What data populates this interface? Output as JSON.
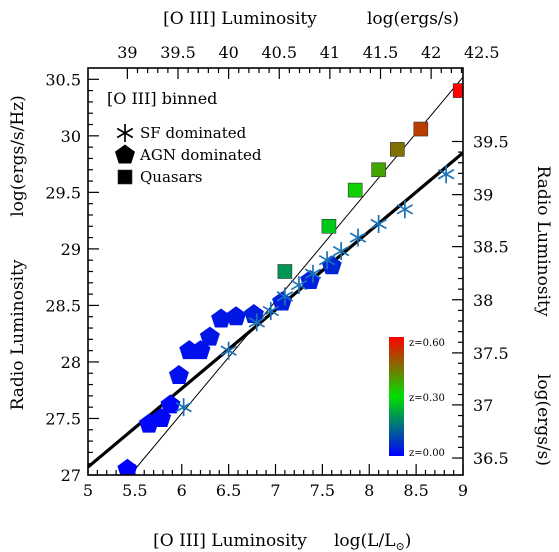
{
  "chart_data": {
    "type": "scatter",
    "panel_label": "[O III] binned",
    "xlabel": "[O III] Luminosity",
    "xlabel_units": "log(L/L",
    "xlabel_units_sub": "⊙",
    "xlabel_units_close": ")",
    "xlim": [
      5,
      9
    ],
    "xticks": [
      "5",
      "5.5",
      "6",
      "6.5",
      "7",
      "7.5",
      "8",
      "8.5",
      "9"
    ],
    "ylabel": "Radio Luminosity",
    "ylabel_units": "log(ergs/s/Hz)",
    "ylim": [
      27,
      30.6
    ],
    "yticks": [
      "27",
      "27.5",
      "28",
      "28.5",
      "29",
      "29.5",
      "30",
      "30.5"
    ],
    "top_axis": {
      "label": "[O III] Luminosity",
      "units": "log(ergs/s)",
      "ticks": [
        {
          "label": "39",
          "value": 39.0,
          "x": 5.42
        },
        {
          "label": "39.5",
          "value": 39.5,
          "x": 5.96
        },
        {
          "label": "40",
          "value": 40.0,
          "x": 6.5
        },
        {
          "label": "40.5",
          "value": 40.5,
          "x": 7.04
        },
        {
          "label": "41",
          "value": 41.0,
          "x": 7.58
        },
        {
          "label": "41.5",
          "value": 41.5,
          "x": 8.12
        },
        {
          "label": "42",
          "value": 42.0,
          "x": 8.66
        },
        {
          "label": "42.5",
          "value": 42.5,
          "x": 9.2
        }
      ]
    },
    "right_axis": {
      "label": "Radio Luminosity",
      "units": "log(ergs/s)",
      "ticks": [
        {
          "label": "36.5",
          "value": 36.5,
          "y": 27.15
        },
        {
          "label": "37",
          "value": 37.0,
          "y": 27.62
        },
        {
          "label": "37.5",
          "value": 37.5,
          "y": 28.08
        },
        {
          "label": "38",
          "value": 38.0,
          "y": 28.55
        },
        {
          "label": "38.5",
          "value": 38.5,
          "y": 29.02
        },
        {
          "label": "39",
          "value": 39.0,
          "y": 29.48
        },
        {
          "label": "39.5",
          "value": 39.5,
          "y": 29.95
        }
      ]
    },
    "legend": [
      {
        "label": "SF dominated",
        "marker": "asterisk"
      },
      {
        "label": "AGN dominated",
        "marker": "pentagon"
      },
      {
        "label": "Quasars",
        "marker": "square"
      }
    ],
    "legend_position": "top-left",
    "colorbar": {
      "position": "bottom-right",
      "labels": [
        "z=0.60",
        "z=0.30",
        "z=0.00"
      ],
      "z_range": [
        0.0,
        0.6
      ]
    },
    "series": [
      {
        "name": "SF dominated",
        "marker": "asterisk",
        "points": [
          {
            "x": 6.02,
            "y": 27.6,
            "z": 0.03
          },
          {
            "x": 6.5,
            "y": 28.1,
            "z": 0.05
          },
          {
            "x": 6.8,
            "y": 28.35,
            "z": 0.05
          },
          {
            "x": 6.95,
            "y": 28.45,
            "z": 0.05
          },
          {
            "x": 7.1,
            "y": 28.58,
            "z": 0.05
          },
          {
            "x": 7.25,
            "y": 28.68,
            "z": 0.05
          },
          {
            "x": 7.4,
            "y": 28.78,
            "z": 0.05
          },
          {
            "x": 7.55,
            "y": 28.9,
            "z": 0.05
          },
          {
            "x": 7.7,
            "y": 28.98,
            "z": 0.06
          },
          {
            "x": 7.88,
            "y": 29.1,
            "z": 0.06
          },
          {
            "x": 8.1,
            "y": 29.22,
            "z": 0.06
          },
          {
            "x": 8.38,
            "y": 29.35,
            "z": 0.07
          },
          {
            "x": 8.82,
            "y": 29.66,
            "z": 0.08
          }
        ]
      },
      {
        "name": "AGN dominated",
        "marker": "pentagon",
        "points": [
          {
            "x": 5.42,
            "y": 27.05,
            "z": 0.0
          },
          {
            "x": 5.65,
            "y": 27.45,
            "z": 0.01
          },
          {
            "x": 5.78,
            "y": 27.5,
            "z": 0.01
          },
          {
            "x": 5.88,
            "y": 27.62,
            "z": 0.01
          },
          {
            "x": 5.97,
            "y": 27.88,
            "z": 0.02
          },
          {
            "x": 6.08,
            "y": 28.1,
            "z": 0.02
          },
          {
            "x": 6.2,
            "y": 28.1,
            "z": 0.02
          },
          {
            "x": 6.3,
            "y": 28.22,
            "z": 0.03
          },
          {
            "x": 6.42,
            "y": 28.38,
            "z": 0.03
          },
          {
            "x": 6.58,
            "y": 28.4,
            "z": 0.03
          },
          {
            "x": 6.77,
            "y": 28.42,
            "z": 0.04
          },
          {
            "x": 7.07,
            "y": 28.53,
            "z": 0.04
          },
          {
            "x": 7.37,
            "y": 28.72,
            "z": 0.04
          },
          {
            "x": 7.6,
            "y": 28.85,
            "z": 0.05
          }
        ]
      },
      {
        "name": "Quasars",
        "marker": "square",
        "points": [
          {
            "x": 7.1,
            "y": 28.8,
            "z": 0.2
          },
          {
            "x": 7.57,
            "y": 29.2,
            "z": 0.27
          },
          {
            "x": 7.85,
            "y": 29.52,
            "z": 0.32
          },
          {
            "x": 8.1,
            "y": 29.7,
            "z": 0.38
          },
          {
            "x": 8.3,
            "y": 29.88,
            "z": 0.45
          },
          {
            "x": 8.55,
            "y": 30.06,
            "z": 0.52
          },
          {
            "x": 8.97,
            "y": 30.4,
            "z": 0.6
          }
        ]
      }
    ],
    "fit_lines": [
      {
        "style": "thick",
        "x": [
          5.0,
          9.0
        ],
        "y": [
          27.07,
          29.85
        ]
      },
      {
        "style": "thin",
        "x": [
          5.45,
          9.0
        ],
        "y": [
          27.0,
          30.52
        ]
      }
    ]
  }
}
